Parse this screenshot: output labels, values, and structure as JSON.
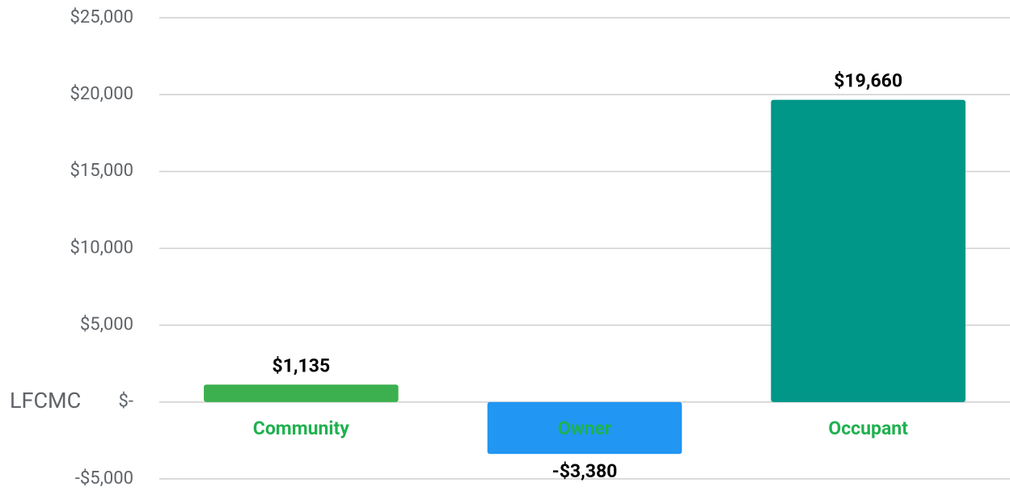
{
  "chart_data": {
    "type": "bar",
    "y_axis_label": "LFCMC",
    "categories": [
      "Community",
      "Owner",
      "Occupant"
    ],
    "values": [
      1135,
      -3380,
      19660
    ],
    "value_labels": [
      "$1,135",
      "-$3,380",
      "$19,660"
    ],
    "colors": [
      "#3cb04e",
      "#2196f3",
      "#009688"
    ],
    "ylim": [
      -5000,
      25000
    ],
    "yticks": [
      {
        "value": -5000,
        "label": "-$5,000"
      },
      {
        "value": 0,
        "label": "$-"
      },
      {
        "value": 5000,
        "label": "$5,000"
      },
      {
        "value": 10000,
        "label": "$10,000"
      },
      {
        "value": 15000,
        "label": "$15,000"
      },
      {
        "value": 20000,
        "label": "$20,000"
      },
      {
        "value": 25000,
        "label": "$25,000"
      }
    ],
    "grid": true
  }
}
